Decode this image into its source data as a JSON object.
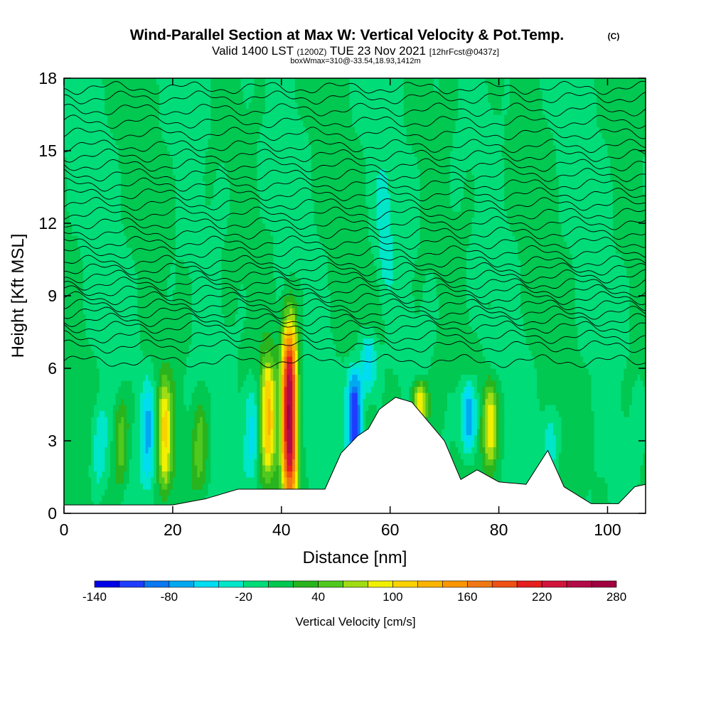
{
  "chart_data": {
    "type": "heatmap",
    "title": "Wind-Parallel Section at Max W: Vertical Velocity & Pot.Temp.",
    "title_mark": "(C)",
    "subtitle_pre": "Valid 1400 LST",
    "subtitle_utc": "(1200Z)",
    "subtitle_post": "TUE 23 Nov 2021",
    "subtitle_fcst": "[12hrFcst@0437z]",
    "box_info": "boxWmax=310@-33.54,18.93,1412m",
    "xlabel": "Distance [nm]",
    "ylabel": "Height [Kft MSL]",
    "xlim": [
      0,
      107
    ],
    "ylim": [
      0,
      18
    ],
    "x_ticks": [
      "0",
      "20",
      "40",
      "60",
      "80",
      "100"
    ],
    "y_ticks": [
      "0",
      "3",
      "6",
      "9",
      "12",
      "15",
      "18"
    ],
    "colorbar": {
      "title": "Vertical Velocity [cm/s]",
      "min": -140,
      "max": 280,
      "step": 20,
      "tick_labels": [
        "-140",
        "-80",
        "-20",
        "40",
        "100",
        "160",
        "220",
        "280"
      ],
      "colors": [
        "#0000e6",
        "#1e3cff",
        "#0a78f0",
        "#00a8f0",
        "#00dcf0",
        "#00e6c8",
        "#00dc78",
        "#00c850",
        "#28b41e",
        "#50c81e",
        "#a0dc14",
        "#f0f000",
        "#fad200",
        "#fab400",
        "#fa9600",
        "#f07814",
        "#f05014",
        "#e61e1e",
        "#d2143c",
        "#b40a46",
        "#a00040"
      ]
    },
    "background_w": 0,
    "updrafts": [
      {
        "x": 41.5,
        "z_bottom": 0.3,
        "z_top": 8.0,
        "peak_w": 260
      },
      {
        "x": 37.5,
        "z_bottom": 1.5,
        "z_top": 6.5,
        "peak_w": 120
      },
      {
        "x": 18.5,
        "z_bottom": 0.8,
        "z_top": 5.5,
        "peak_w": 95
      },
      {
        "x": 10.5,
        "z_bottom": 1.0,
        "z_top": 5.0,
        "peak_w": 55
      },
      {
        "x": 78.5,
        "z_bottom": 2.0,
        "z_top": 5.5,
        "peak_w": 100
      },
      {
        "x": 65.5,
        "z_bottom": 3.5,
        "z_top": 5.5,
        "peak_w": 110
      },
      {
        "x": 25.0,
        "z_bottom": 1.0,
        "z_top": 4.5,
        "peak_w": 50
      }
    ],
    "downdrafts": [
      {
        "x": 53.5,
        "z_bottom": 2.0,
        "z_top": 6.0,
        "peak_w": -130
      },
      {
        "x": 56.0,
        "z_bottom": 5.0,
        "z_top": 7.5,
        "peak_w": -60
      },
      {
        "x": 74.5,
        "z_bottom": 2.5,
        "z_top": 5.5,
        "peak_w": -90
      },
      {
        "x": 15.5,
        "z_bottom": 1.0,
        "z_top": 5.5,
        "peak_w": -60
      },
      {
        "x": 6.5,
        "z_bottom": 1.0,
        "z_top": 4.5,
        "peak_w": -40
      },
      {
        "x": 34.5,
        "z_bottom": 1.5,
        "z_top": 5.5,
        "peak_w": -50
      },
      {
        "x": 89.5,
        "z_bottom": 1.5,
        "z_top": 4.5,
        "peak_w": -40
      },
      {
        "x": 59.0,
        "z_bottom": 9.0,
        "z_top": 14.0,
        "peak_w": -25
      }
    ],
    "terrain": [
      [
        0,
        0.35
      ],
      [
        20,
        0.35
      ],
      [
        26,
        0.6
      ],
      [
        32,
        1.0
      ],
      [
        44,
        1.0
      ],
      [
        48,
        1.0
      ],
      [
        51,
        2.5
      ],
      [
        54,
        3.2
      ],
      [
        56,
        3.5
      ],
      [
        58,
        4.3
      ],
      [
        61,
        4.8
      ],
      [
        64,
        4.6
      ],
      [
        67,
        3.8
      ],
      [
        70,
        3.0
      ],
      [
        73,
        1.4
      ],
      [
        76,
        1.8
      ],
      [
        80,
        1.3
      ],
      [
        85,
        1.2
      ],
      [
        89,
        2.6
      ],
      [
        92,
        1.1
      ],
      [
        97,
        0.4
      ],
      [
        102,
        0.4
      ],
      [
        105,
        1.1
      ],
      [
        107,
        1.2
      ]
    ],
    "theta_isentrope_heights": [
      6.3,
      6.9,
      7.3,
      7.7,
      8.0,
      8.3,
      8.6,
      8.9,
      9.2,
      9.5,
      9.8,
      10.1,
      10.4,
      10.8,
      11.2,
      11.6,
      12.0,
      12.4,
      12.8,
      13.2,
      13.6,
      14.0,
      14.4,
      14.8,
      15.2,
      15.7,
      16.2,
      16.7,
      17.2,
      17.6
    ]
  }
}
